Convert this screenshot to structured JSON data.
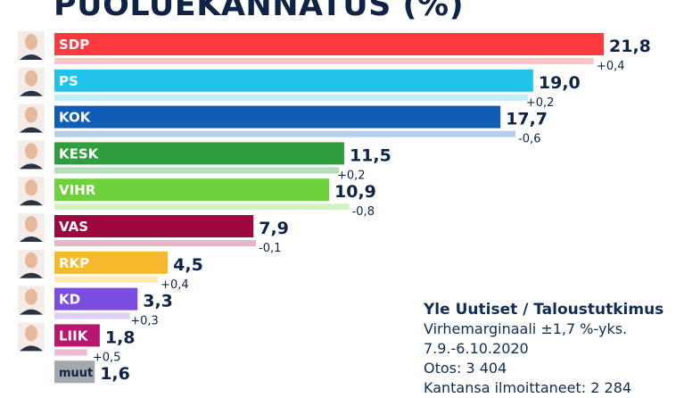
{
  "chart_data": {
    "type": "bar",
    "title": "PUOLUEKANNATUS (%)",
    "orientation": "horizontal",
    "categories": [
      "SDP",
      "PS",
      "KOK",
      "KESK",
      "VIHR",
      "VAS",
      "RKP",
      "KD",
      "LIIK",
      "muut"
    ],
    "series": [
      {
        "name": "current",
        "values": [
          21.8,
          19.0,
          17.7,
          11.5,
          10.9,
          7.9,
          4.5,
          3.3,
          1.8,
          1.6
        ]
      },
      {
        "name": "previous",
        "values": [
          21.4,
          18.8,
          18.3,
          11.3,
          11.7,
          8.0,
          4.1,
          3.0,
          1.3,
          null
        ]
      }
    ],
    "value_labels": [
      "21,8",
      "19,0",
      "17,7",
      "11,5",
      "10,9",
      "7,9",
      "4,5",
      "3,3",
      "1,8",
      "1,6"
    ],
    "change_labels": [
      "+0,4",
      "+0,2",
      "-0,6",
      "+0,2",
      "-0,8",
      "-0,1",
      "+0,4",
      "+0,3",
      "+0,5",
      ""
    ],
    "colors": [
      "#ff3a3f",
      "#22c3eb",
      "#0f5db5",
      "#2e9e3e",
      "#6dd23c",
      "#9c073f",
      "#f6b82d",
      "#7b4ce0",
      "#b8166f",
      "#a2aaad"
    ],
    "light_colors": [
      "#ffc4c6",
      "#bdeefa",
      "#b6cdea",
      "#b5dfbb",
      "#d4f3c3",
      "#e7b7c9",
      "#fde8b8",
      "#dccffa",
      "#ecbad4",
      ""
    ],
    "label_colors": [
      "#fff",
      "#fff",
      "#fff",
      "#fff",
      "#fff",
      "#fff",
      "#fff",
      "#fff",
      "#fff",
      "#0f2346"
    ],
    "xlim": [
      0,
      22
    ]
  },
  "source": {
    "heading": "Yle Uutiset / Taloustutkimus",
    "margin": "Virhemarginaali ±1,7 %-yks.",
    "period": "7.9.-6.10.2020",
    "sample": "Otos: 3 404",
    "stated": "Kantansa ilmoittaneet: 2 284"
  }
}
